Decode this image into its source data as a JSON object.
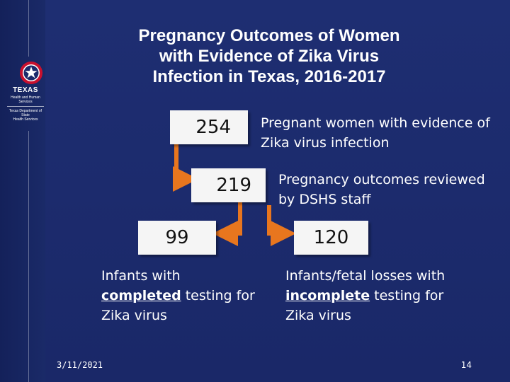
{
  "slide": {
    "title_lines": [
      "Pregnancy Outcomes of Women",
      "with Evidence of Zika Virus",
      "Infection in Texas, 2016-2017"
    ],
    "logo": {
      "brand": "TEXAS",
      "sub_lines": [
        "Health and Human",
        "Services"
      ],
      "dept_lines": [
        "Texas Department of State",
        "Health Services"
      ]
    },
    "boxes": {
      "total": {
        "value": "254",
        "label": "Pregnant women with evidence of Zika virus infection"
      },
      "reviewed": {
        "value": "219",
        "label": "Pregnancy outcomes reviewed by DSHS staff"
      },
      "completed": {
        "value": "99",
        "label_pre": "Infants with ",
        "label_emph": "completed",
        "label_post": " testing for Zika virus"
      },
      "incomplete": {
        "value": "120",
        "label_pre": "Infants/fetal losses with ",
        "label_emph": "incomplete",
        "label_post": " testing for Zika virus"
      }
    },
    "footer": {
      "date": "3/11/2021",
      "page": "14"
    },
    "colors": {
      "background": "#1b2a6b",
      "arrow": "#e8761e",
      "box": "#f5f5f5"
    }
  }
}
